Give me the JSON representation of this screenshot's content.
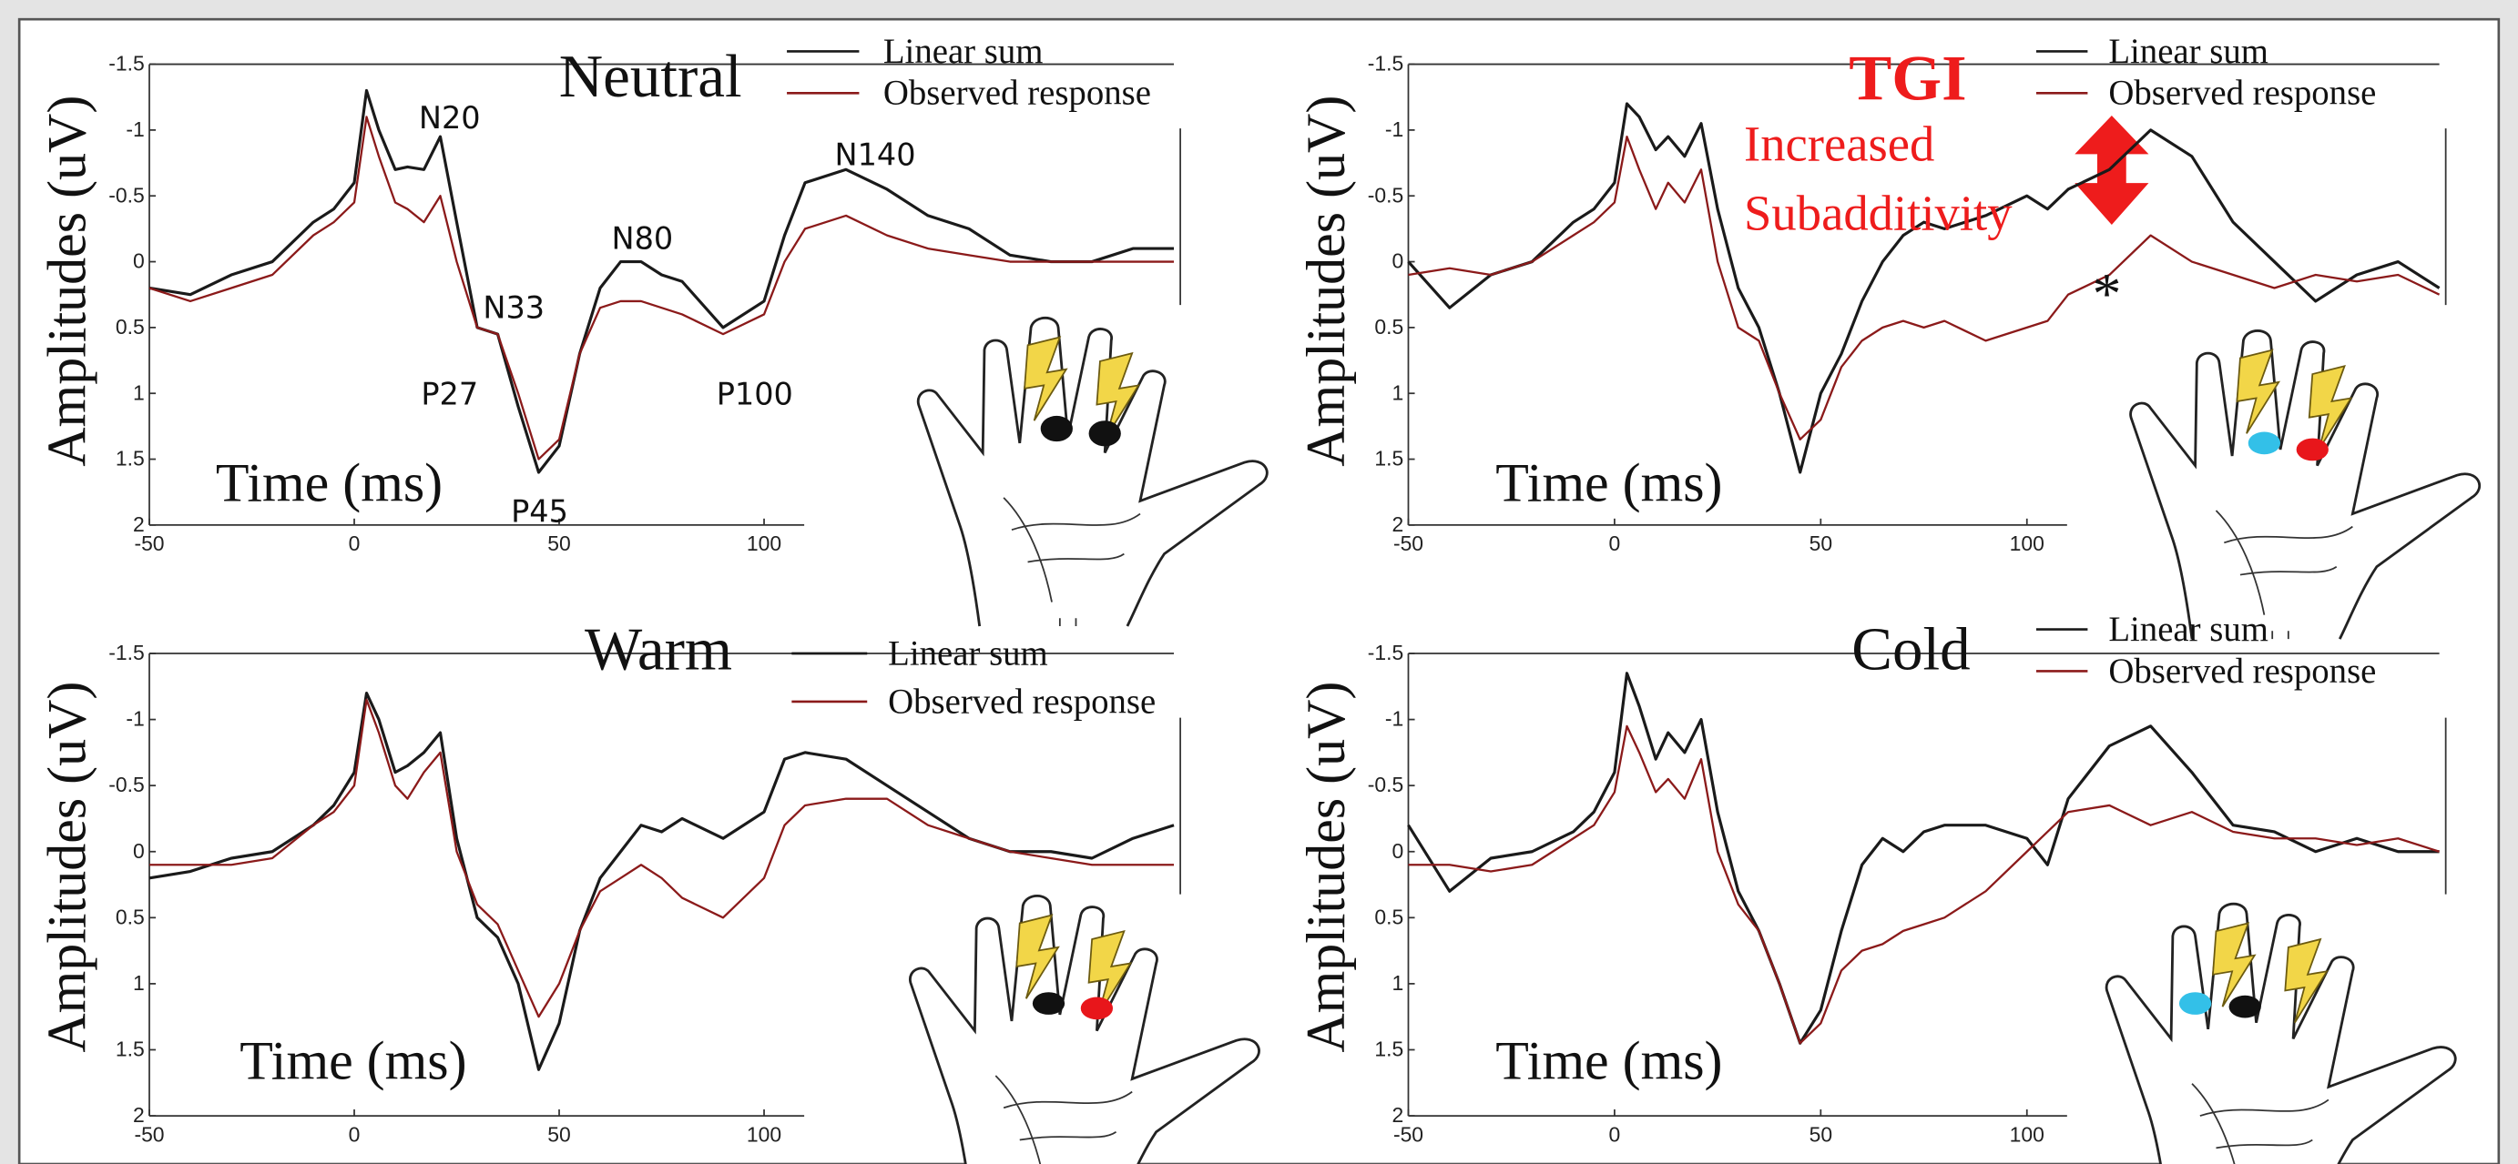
{
  "chart_data": [
    {
      "type": "line",
      "title": "Neutral",
      "xlabel": "Time (ms)",
      "ylabel": "Amplitudes (uV)",
      "x": [
        -50,
        -40,
        -30,
        -20,
        -10,
        -5,
        0,
        3,
        6,
        10,
        13,
        17,
        21,
        25,
        30,
        35,
        40,
        45,
        50,
        55,
        60,
        65,
        70,
        75,
        80,
        90,
        100,
        105,
        110,
        120,
        130,
        140,
        150,
        160,
        170,
        180,
        190,
        200
      ],
      "series": [
        {
          "name": "Linear sum",
          "color": "#1a1a1a",
          "values": [
            0.2,
            0.25,
            0.1,
            0.0,
            -0.3,
            -0.4,
            -0.6,
            -1.3,
            -1.0,
            -0.7,
            -0.72,
            -0.7,
            -0.95,
            -0.3,
            0.5,
            0.55,
            1.1,
            1.6,
            1.4,
            0.7,
            0.2,
            0.0,
            0.0,
            0.1,
            0.15,
            0.5,
            0.3,
            -0.2,
            -0.6,
            -0.7,
            -0.55,
            -0.35,
            -0.25,
            -0.05,
            0.0,
            0.0,
            -0.1,
            -0.1
          ]
        },
        {
          "name": "Observed response",
          "color": "#8b1a1a",
          "values": [
            0.2,
            0.3,
            0.2,
            0.1,
            -0.2,
            -0.3,
            -0.45,
            -1.1,
            -0.8,
            -0.45,
            -0.4,
            -0.3,
            -0.5,
            0.0,
            0.5,
            0.55,
            1.0,
            1.5,
            1.35,
            0.7,
            0.35,
            0.3,
            0.3,
            0.35,
            0.4,
            0.55,
            0.4,
            0.0,
            -0.25,
            -0.35,
            -0.2,
            -0.1,
            -0.05,
            0.0,
            0.0,
            0.0,
            0.0,
            0.0
          ]
        }
      ],
      "xlim": [
        -50,
        200
      ],
      "ylim": [
        -1.5,
        2
      ],
      "y_inverted": true,
      "xticks": [
        -50,
        0,
        50,
        100
      ],
      "yticks": [
        -1.5,
        -1,
        -0.5,
        0,
        0.5,
        1,
        1.5,
        2
      ],
      "annotations": [
        "N20",
        "N33",
        "P27",
        "N80",
        "P45",
        "N140",
        "P100"
      ]
    },
    {
      "type": "line",
      "title": "TGI",
      "xlabel": "Time (ms)",
      "ylabel": "Amplitudes (uV)",
      "x": [
        -50,
        -40,
        -30,
        -20,
        -10,
        -5,
        0,
        3,
        6,
        10,
        13,
        17,
        21,
        25,
        30,
        35,
        40,
        45,
        50,
        55,
        60,
        65,
        70,
        75,
        80,
        90,
        100,
        105,
        110,
        120,
        130,
        140,
        150,
        160,
        170,
        180,
        190,
        200
      ],
      "series": [
        {
          "name": "Linear sum",
          "color": "#1a1a1a",
          "values": [
            0.0,
            0.35,
            0.1,
            0.0,
            -0.3,
            -0.4,
            -0.6,
            -1.2,
            -1.1,
            -0.85,
            -0.95,
            -0.8,
            -1.05,
            -0.4,
            0.2,
            0.5,
            1.0,
            1.6,
            1.0,
            0.7,
            0.3,
            0.0,
            -0.2,
            -0.3,
            -0.25,
            -0.35,
            -0.5,
            -0.4,
            -0.55,
            -0.7,
            -1.0,
            -0.8,
            -0.3,
            0.0,
            0.3,
            0.1,
            0.0,
            0.2
          ]
        },
        {
          "name": "Observed response",
          "color": "#8b1a1a",
          "values": [
            0.1,
            0.05,
            0.1,
            0.0,
            -0.2,
            -0.3,
            -0.45,
            -0.95,
            -0.7,
            -0.4,
            -0.6,
            -0.45,
            -0.7,
            0.0,
            0.5,
            0.6,
            1.0,
            1.35,
            1.2,
            0.8,
            0.6,
            0.5,
            0.45,
            0.5,
            0.45,
            0.6,
            0.5,
            0.45,
            0.25,
            0.1,
            -0.2,
            0.0,
            0.1,
            0.2,
            0.1,
            0.15,
            0.1,
            0.25
          ]
        }
      ],
      "xlim": [
        -50,
        200
      ],
      "ylim": [
        -1.5,
        2
      ],
      "y_inverted": true,
      "xticks": [
        -50,
        0,
        50,
        100
      ],
      "yticks": [
        -1.5,
        -1,
        -0.5,
        0,
        0.5,
        1,
        1.5,
        2
      ],
      "annotations": [
        "TGI",
        "Increased",
        "Subadditivity",
        "*"
      ]
    },
    {
      "type": "line",
      "title": "Warm",
      "xlabel": "Time (ms)",
      "ylabel": "Amplitudes (uV)",
      "x": [
        -50,
        -40,
        -30,
        -20,
        -10,
        -5,
        0,
        3,
        6,
        10,
        13,
        17,
        21,
        25,
        30,
        35,
        40,
        45,
        50,
        55,
        60,
        65,
        70,
        75,
        80,
        90,
        100,
        105,
        110,
        120,
        130,
        140,
        150,
        160,
        170,
        180,
        190,
        200
      ],
      "series": [
        {
          "name": "Linear sum",
          "color": "#1a1a1a",
          "values": [
            0.2,
            0.15,
            0.05,
            0.0,
            -0.2,
            -0.35,
            -0.6,
            -1.2,
            -1.0,
            -0.6,
            -0.65,
            -0.75,
            -0.9,
            -0.1,
            0.5,
            0.65,
            1.0,
            1.65,
            1.3,
            0.6,
            0.2,
            0.0,
            -0.2,
            -0.15,
            -0.25,
            -0.1,
            -0.3,
            -0.7,
            -0.75,
            -0.7,
            -0.5,
            -0.3,
            -0.1,
            0.0,
            0.0,
            0.05,
            -0.1,
            -0.2
          ]
        },
        {
          "name": "Observed response",
          "color": "#8b1a1a",
          "values": [
            0.1,
            0.1,
            0.1,
            0.05,
            -0.2,
            -0.3,
            -0.5,
            -1.15,
            -0.9,
            -0.5,
            -0.4,
            -0.6,
            -0.75,
            0.0,
            0.4,
            0.55,
            0.9,
            1.25,
            1.0,
            0.6,
            0.3,
            0.2,
            0.1,
            0.2,
            0.35,
            0.5,
            0.2,
            -0.2,
            -0.35,
            -0.4,
            -0.4,
            -0.2,
            -0.1,
            0.0,
            0.05,
            0.1,
            0.1,
            0.1
          ]
        }
      ],
      "xlim": [
        -50,
        200
      ],
      "ylim": [
        -1.5,
        2
      ],
      "y_inverted": true,
      "xticks": [
        -50,
        0,
        50,
        100
      ],
      "yticks": [
        -1.5,
        -1,
        -0.5,
        0,
        0.5,
        1,
        1.5,
        2
      ]
    },
    {
      "type": "line",
      "title": "Cold",
      "xlabel": "Time (ms)",
      "ylabel": "Amplitudes (uV)",
      "x": [
        -50,
        -40,
        -30,
        -20,
        -10,
        -5,
        0,
        3,
        6,
        10,
        13,
        17,
        21,
        25,
        30,
        35,
        40,
        45,
        50,
        55,
        60,
        65,
        70,
        75,
        80,
        90,
        100,
        105,
        110,
        120,
        130,
        140,
        150,
        160,
        170,
        180,
        190,
        200
      ],
      "series": [
        {
          "name": "Linear sum",
          "color": "#1a1a1a",
          "values": [
            -0.2,
            0.3,
            0.05,
            0.0,
            -0.15,
            -0.3,
            -0.6,
            -1.35,
            -1.1,
            -0.7,
            -0.9,
            -0.75,
            -1.0,
            -0.3,
            0.3,
            0.6,
            1.0,
            1.45,
            1.2,
            0.6,
            0.1,
            -0.1,
            0.0,
            -0.15,
            -0.2,
            -0.2,
            -0.1,
            0.1,
            -0.4,
            -0.8,
            -0.95,
            -0.6,
            -0.2,
            -0.15,
            0.0,
            -0.1,
            0.0,
            0.0
          ]
        },
        {
          "name": "Observed response",
          "color": "#8b1a1a",
          "values": [
            0.1,
            0.1,
            0.15,
            0.1,
            -0.1,
            -0.2,
            -0.45,
            -0.95,
            -0.75,
            -0.45,
            -0.55,
            -0.4,
            -0.7,
            0.0,
            0.4,
            0.6,
            1.0,
            1.45,
            1.3,
            0.9,
            0.75,
            0.7,
            0.6,
            0.55,
            0.5,
            0.3,
            0.0,
            -0.15,
            -0.3,
            -0.35,
            -0.2,
            -0.3,
            -0.15,
            -0.1,
            -0.1,
            -0.05,
            -0.1,
            0.0
          ]
        }
      ],
      "xlim": [
        -50,
        200
      ],
      "ylim": [
        -1.5,
        2
      ],
      "y_inverted": true,
      "xticks": [
        -50,
        0,
        50,
        100
      ],
      "yticks": [
        -1.5,
        -1,
        -0.5,
        0,
        0.5,
        1,
        1.5,
        2
      ]
    }
  ]
}
